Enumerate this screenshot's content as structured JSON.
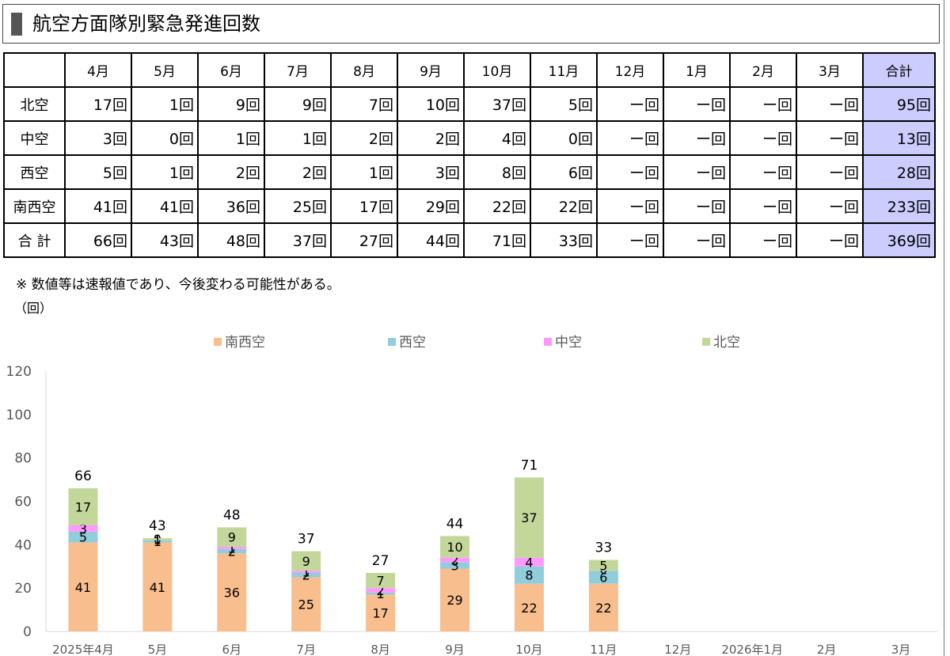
{
  "title": "航空方面隊別緊急発進回数",
  "table": {
    "corner": "",
    "columns": [
      "4月",
      "5月",
      "6月",
      "7月",
      "8月",
      "9月",
      "10月",
      "11月",
      "12月",
      "1月",
      "2月",
      "3月",
      "合計"
    ],
    "rows": [
      {
        "label": "北空",
        "cells": [
          "17回",
          "1回",
          "9回",
          "9回",
          "7回",
          "10回",
          "37回",
          "5回",
          "ー回",
          "ー回",
          "ー回",
          "ー回",
          "95回"
        ]
      },
      {
        "label": "中空",
        "cells": [
          "3回",
          "0回",
          "1回",
          "1回",
          "2回",
          "2回",
          "4回",
          "0回",
          "ー回",
          "ー回",
          "ー回",
          "ー回",
          "13回"
        ]
      },
      {
        "label": "西空",
        "cells": [
          "5回",
          "1回",
          "2回",
          "2回",
          "1回",
          "3回",
          "8回",
          "6回",
          "ー回",
          "ー回",
          "ー回",
          "ー回",
          "28回"
        ]
      },
      {
        "label": "南西空",
        "cells": [
          "41回",
          "41回",
          "36回",
          "25回",
          "17回",
          "29回",
          "22回",
          "22回",
          "ー回",
          "ー回",
          "ー回",
          "ー回",
          "233回"
        ]
      },
      {
        "label": "合 計",
        "cells": [
          "66回",
          "43回",
          "48回",
          "37回",
          "27回",
          "44回",
          "71回",
          "33回",
          "ー回",
          "ー回",
          "ー回",
          "ー回",
          "369回"
        ]
      }
    ]
  },
  "note": "※ 数値等は速報値であり、今後変わる可能性がある。",
  "unit": "（回）",
  "chart_data": {
    "type": "bar",
    "stacked": true,
    "categories": [
      "2025年4月",
      "5月",
      "6月",
      "7月",
      "8月",
      "9月",
      "10月",
      "11月",
      "12月",
      "2026年1月",
      "2月",
      "3月"
    ],
    "series": [
      {
        "name": "南西空",
        "color": "#f8be8e",
        "values": [
          41,
          41,
          36,
          25,
          17,
          29,
          22,
          22,
          null,
          null,
          null,
          null
        ]
      },
      {
        "name": "西空",
        "color": "#92cddc",
        "values": [
          5,
          1,
          2,
          2,
          1,
          3,
          8,
          6,
          null,
          null,
          null,
          null
        ]
      },
      {
        "name": "中空",
        "color": "#ff99ff",
        "values": [
          3,
          0,
          1,
          1,
          2,
          2,
          4,
          0,
          null,
          null,
          null,
          null
        ]
      },
      {
        "name": "北空",
        "color": "#c4d79b",
        "values": [
          17,
          1,
          9,
          9,
          7,
          10,
          37,
          5,
          null,
          null,
          null,
          null
        ]
      }
    ],
    "totals": [
      66,
      43,
      48,
      37,
      27,
      44,
      71,
      33,
      null,
      null,
      null,
      null
    ],
    "ylim": [
      0,
      120
    ],
    "yticks": [
      0,
      20,
      40,
      60,
      80,
      100,
      120
    ],
    "grid": false,
    "legend_position": "top"
  }
}
